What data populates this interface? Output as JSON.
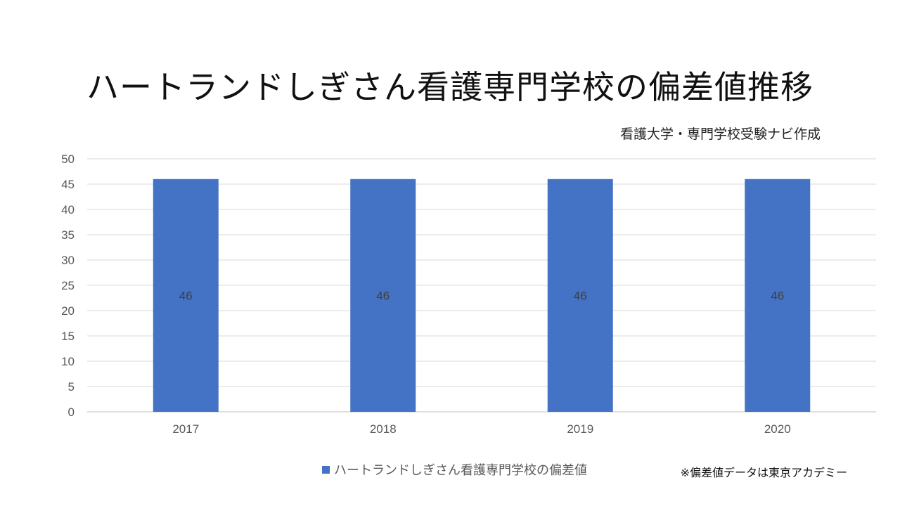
{
  "chart_data": {
    "type": "bar",
    "title": "ハートランドしぎさん看護専門学校の偏差値推移",
    "subtitle": "看護大学・専門学校受験ナビ作成",
    "categories": [
      "2017",
      "2018",
      "2019",
      "2020"
    ],
    "series": [
      {
        "name": "ハートランドしぎさん看護専門学校の偏差値",
        "values": [
          46,
          46,
          46,
          46
        ],
        "color": "#4472C4"
      }
    ],
    "data_labels": [
      "46",
      "46",
      "46",
      "46"
    ],
    "ylim": [
      0,
      50
    ],
    "yticks": [
      0,
      5,
      10,
      15,
      20,
      25,
      30,
      35,
      40,
      45,
      50
    ],
    "xlabel": "",
    "ylabel": "",
    "grid": true,
    "legend_position": "bottom"
  },
  "note": "※偏差値データは東京アカデミー"
}
